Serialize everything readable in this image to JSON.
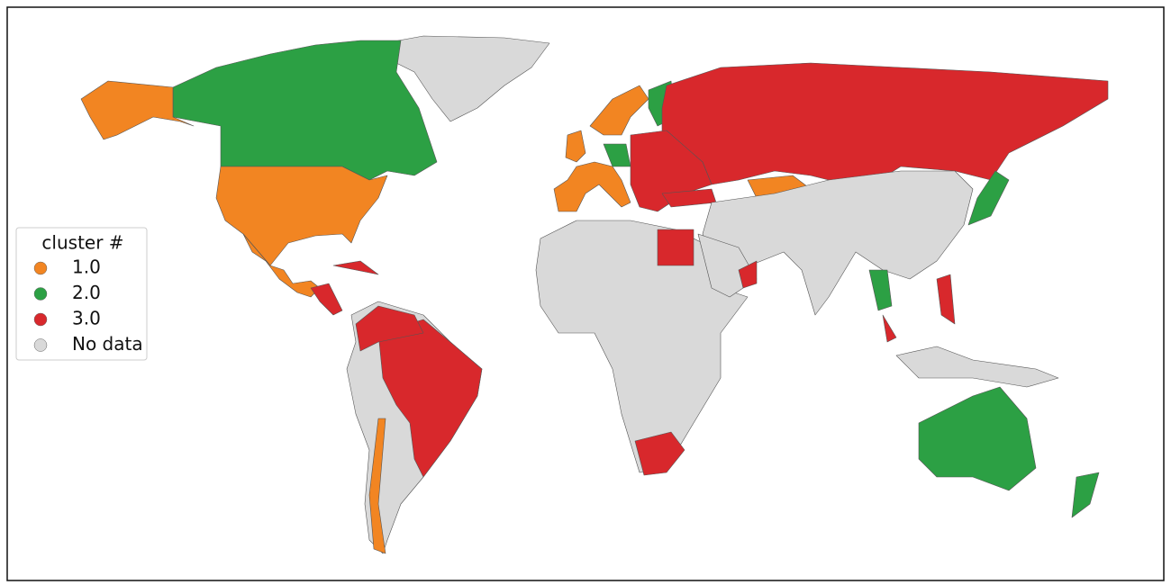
{
  "legend": {
    "title": "cluster #",
    "items": [
      {
        "label": "1.0",
        "color": "#f28522"
      },
      {
        "label": "2.0",
        "color": "#2ca044"
      },
      {
        "label": "3.0",
        "color": "#d8282c"
      },
      {
        "label": "No data",
        "color": "#d9d9d9"
      }
    ]
  }
}
